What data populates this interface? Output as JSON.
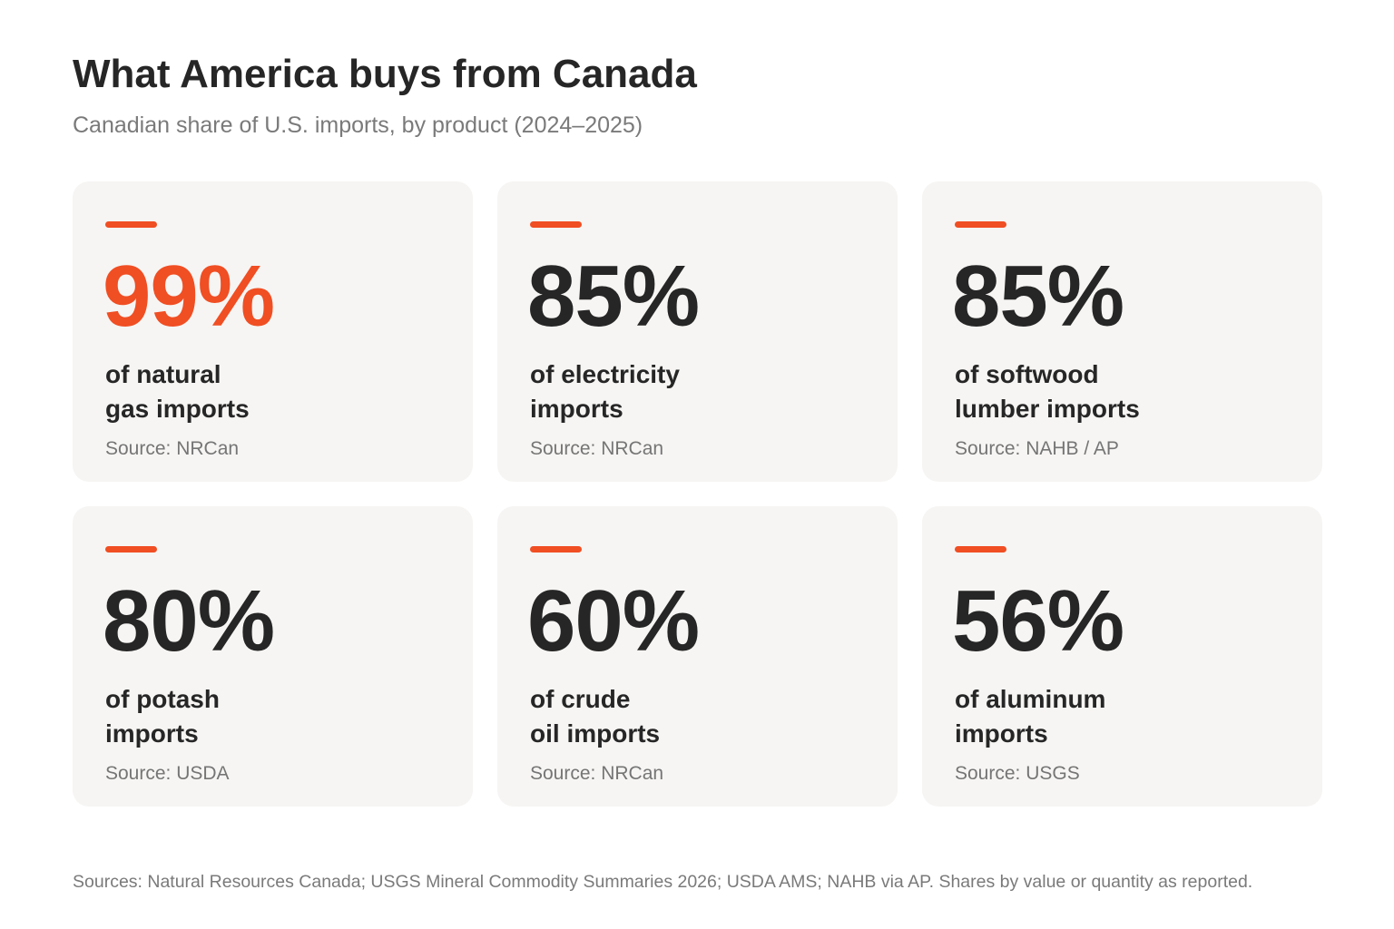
{
  "chart_data": {
    "type": "table",
    "title": "What America buys from Canada",
    "subtitle": "Canadian share of U.S. imports, by product (2024–2025)",
    "unit": "%",
    "cards": [
      {
        "value": 99,
        "display": "99%",
        "label_lines": [
          "of natural",
          "gas imports"
        ],
        "source": "Source: NRCan",
        "highlight": true
      },
      {
        "value": 85,
        "display": "85%",
        "label_lines": [
          "of electricity",
          "imports"
        ],
        "source": "Source: NRCan",
        "highlight": false
      },
      {
        "value": 85,
        "display": "85%",
        "label_lines": [
          "of softwood",
          "lumber imports"
        ],
        "source": "Source: NAHB / AP",
        "highlight": false
      },
      {
        "value": 80,
        "display": "80%",
        "label_lines": [
          "of potash",
          "imports"
        ],
        "source": "Source: USDA",
        "highlight": false
      },
      {
        "value": 60,
        "display": "60%",
        "label_lines": [
          "of crude",
          "oil imports"
        ],
        "source": "Source: NRCan",
        "highlight": false
      },
      {
        "value": 56,
        "display": "56%",
        "label_lines": [
          "of aluminum",
          "imports"
        ],
        "source": "Source: USGS",
        "highlight": false
      }
    ],
    "footnote": "Sources: Natural Resources Canada; USGS Mineral Commodity Summaries 2026; USDA AMS; NAHB via AP. Shares by value or quantity as reported."
  },
  "colors": {
    "accent": "#f04e23",
    "text": "#262626",
    "muted": "#7a7a7a",
    "card_background": "#f6f5f3",
    "page_background": "#ffffff"
  }
}
